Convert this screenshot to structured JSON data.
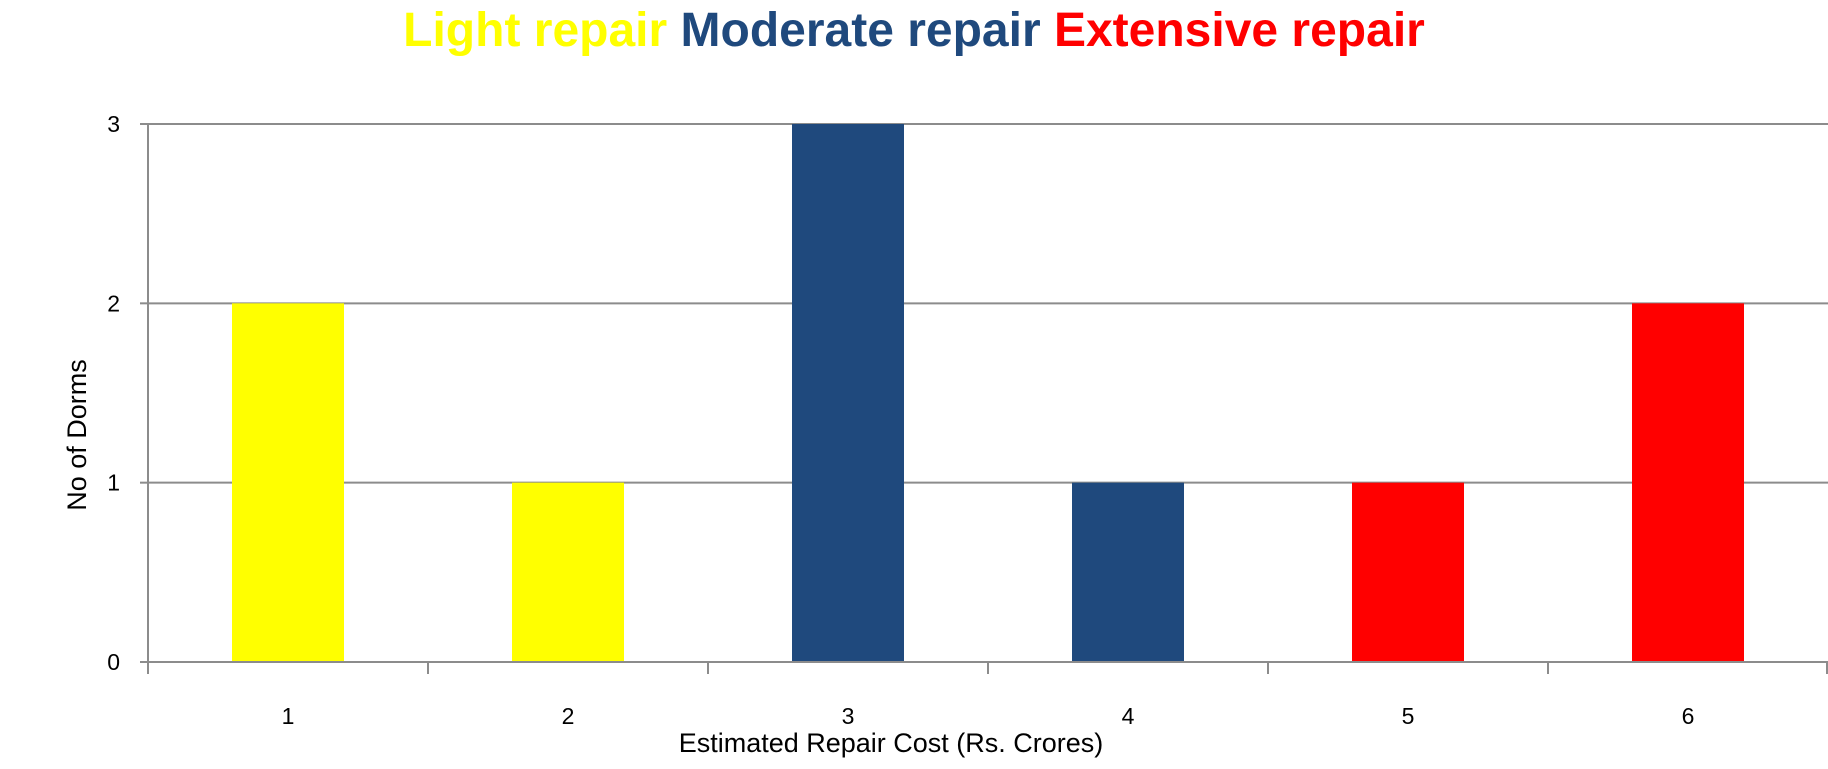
{
  "chart_data": {
    "type": "bar",
    "title_segments": [
      {
        "text": "Light repair",
        "color": "#FFFF00"
      },
      {
        "text": "Moderate repair",
        "color": "#1F497D"
      },
      {
        "text": "Extensive repair",
        "color": "#FF0000"
      }
    ],
    "xlabel": "Estimated Repair Cost  (Rs. Crores)",
    "ylabel": "No of Dorms",
    "categories": [
      "1",
      "2",
      "3",
      "4",
      "5",
      "6"
    ],
    "values": [
      2,
      1,
      3,
      1,
      1,
      2
    ],
    "bar_colors": [
      "#FFFF00",
      "#FFFF00",
      "#1F497D",
      "#1F497D",
      "#FF0000",
      "#FF0000"
    ],
    "ylim": [
      0,
      3
    ],
    "yticks": [
      0,
      1,
      2,
      3
    ],
    "grid": true,
    "legend": "none"
  }
}
